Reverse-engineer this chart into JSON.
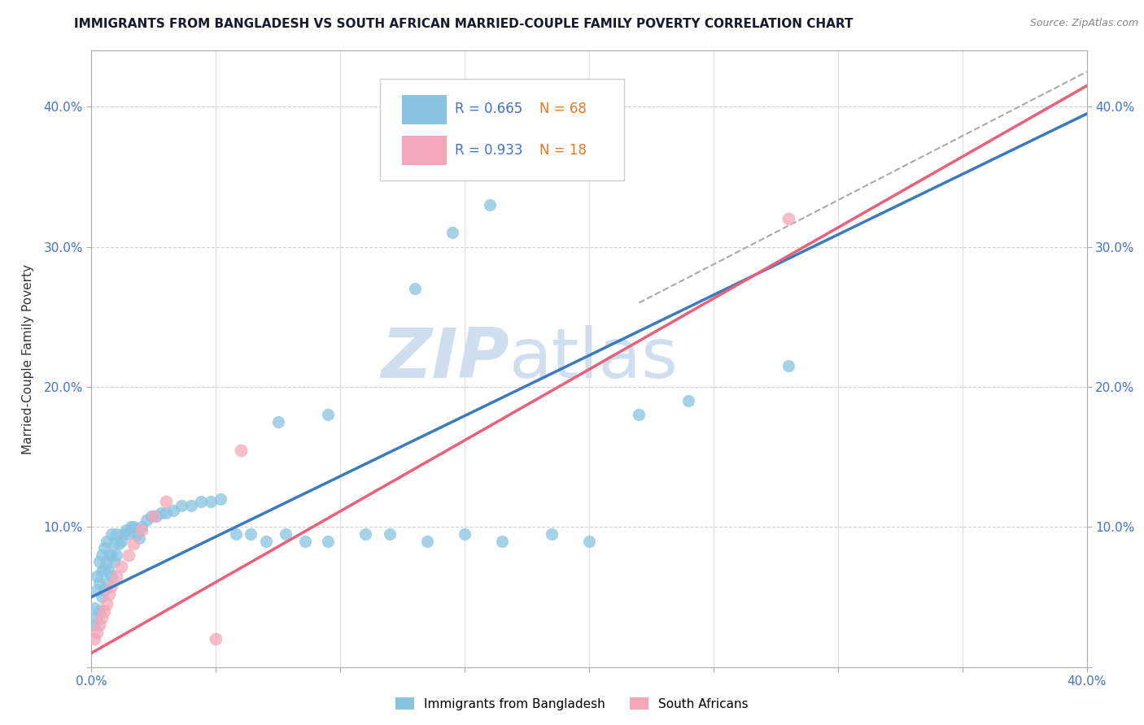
{
  "title": "IMMIGRANTS FROM BANGLADESH VS SOUTH AFRICAN MARRIED-COUPLE FAMILY POVERTY CORRELATION CHART",
  "source": "Source: ZipAtlas.com",
  "ylabel": "Married-Couple Family Poverty",
  "xlim": [
    0.0,
    0.4
  ],
  "ylim": [
    0.0,
    0.44
  ],
  "legend1_r": "R = 0.665",
  "legend1_n": "N = 68",
  "legend2_r": "R = 0.933",
  "legend2_n": "N = 18",
  "color_blue": "#89c4e1",
  "color_pink": "#f4a7b9",
  "color_blue_line": "#3a7abf",
  "color_pink_line": "#e8607a",
  "color_blue_text": "#4472c4",
  "color_orange_text": "#e87722",
  "watermark_color": "#d0dff0",
  "background_color": "#ffffff",
  "grid_color": "#d0d0d0",
  "blue_x": [
    0.001,
    0.001,
    0.002,
    0.002,
    0.002,
    0.003,
    0.003,
    0.003,
    0.004,
    0.004,
    0.004,
    0.005,
    0.005,
    0.005,
    0.006,
    0.006,
    0.006,
    0.007,
    0.007,
    0.008,
    0.008,
    0.008,
    0.009,
    0.009,
    0.01,
    0.01,
    0.011,
    0.012,
    0.013,
    0.014,
    0.015,
    0.016,
    0.017,
    0.018,
    0.019,
    0.02,
    0.022,
    0.024,
    0.026,
    0.028,
    0.03,
    0.033,
    0.036,
    0.04,
    0.044,
    0.048,
    0.052,
    0.058,
    0.064,
    0.07,
    0.078,
    0.086,
    0.095,
    0.11,
    0.12,
    0.135,
    0.15,
    0.165,
    0.185,
    0.2,
    0.13,
    0.145,
    0.16,
    0.22,
    0.24,
    0.28,
    0.095,
    0.075
  ],
  "blue_y": [
    0.03,
    0.042,
    0.035,
    0.055,
    0.065,
    0.04,
    0.06,
    0.075,
    0.05,
    0.068,
    0.08,
    0.055,
    0.07,
    0.085,
    0.06,
    0.075,
    0.09,
    0.068,
    0.08,
    0.065,
    0.08,
    0.095,
    0.075,
    0.088,
    0.08,
    0.095,
    0.088,
    0.09,
    0.095,
    0.098,
    0.095,
    0.1,
    0.1,
    0.095,
    0.092,
    0.1,
    0.105,
    0.108,
    0.108,
    0.11,
    0.11,
    0.112,
    0.115,
    0.115,
    0.118,
    0.118,
    0.12,
    0.095,
    0.095,
    0.09,
    0.095,
    0.09,
    0.09,
    0.095,
    0.095,
    0.09,
    0.095,
    0.09,
    0.095,
    0.09,
    0.27,
    0.31,
    0.33,
    0.18,
    0.19,
    0.215,
    0.18,
    0.175
  ],
  "pink_x": [
    0.001,
    0.002,
    0.003,
    0.004,
    0.005,
    0.006,
    0.007,
    0.008,
    0.01,
    0.012,
    0.015,
    0.017,
    0.02,
    0.025,
    0.03,
    0.05,
    0.06,
    0.28
  ],
  "pink_y": [
    0.02,
    0.025,
    0.03,
    0.035,
    0.04,
    0.045,
    0.052,
    0.058,
    0.065,
    0.072,
    0.08,
    0.088,
    0.098,
    0.108,
    0.118,
    0.02,
    0.155,
    0.32
  ],
  "blue_line_x0": 0.0,
  "blue_line_y0": 0.05,
  "blue_line_x1": 0.4,
  "blue_line_y1": 0.395,
  "pink_line_x0": 0.0,
  "pink_line_y0": 0.01,
  "pink_line_x1": 0.4,
  "pink_line_y1": 0.415,
  "dash_line_x0": 0.22,
  "dash_line_y0": 0.26,
  "dash_line_x1": 0.4,
  "dash_line_y1": 0.425
}
